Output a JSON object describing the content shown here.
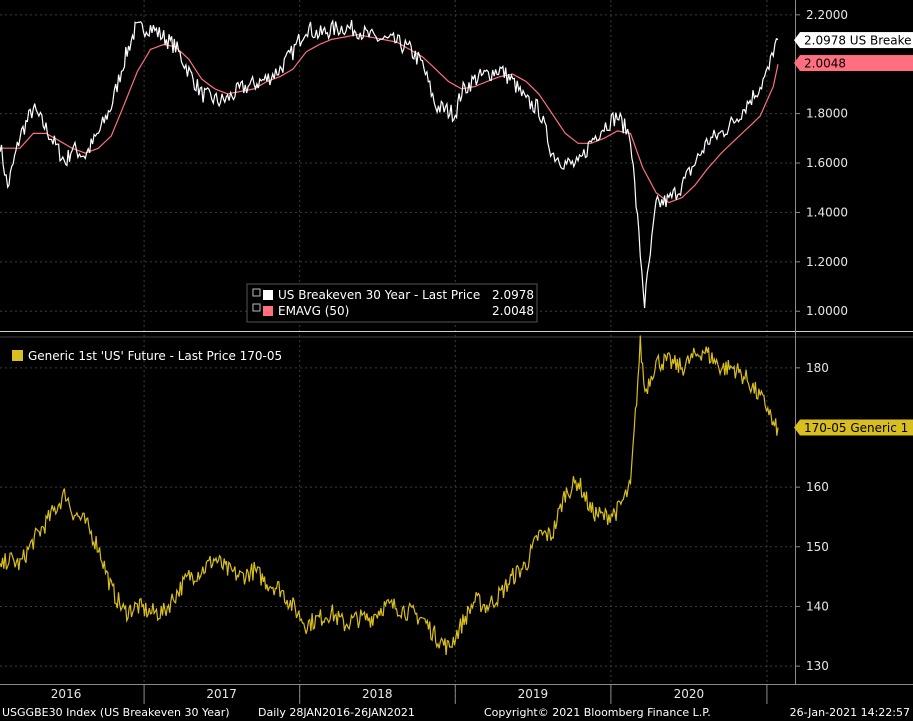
{
  "chart_data": [
    {
      "type": "line",
      "legend": {
        "series1_label": "US Breakeven 30 Year - Last Price",
        "series1_value": "2.0978",
        "series2_label": "EMAVG (50)",
        "series2_value": "2.0048"
      },
      "ylim": [
        0.92,
        2.26
      ],
      "y_ticks": [
        "2.2000",
        "1.8000",
        "1.6000",
        "1.4000",
        "1.2000",
        "1.0000"
      ],
      "last_tags": {
        "series1": "2.0978 US Breake",
        "series2": "2.0048"
      },
      "series": [
        {
          "name": "US Breakeven 30 Year - Last Price",
          "color": "#ffffff",
          "x": [
            "2016-01-28",
            "2016-02-15",
            "2016-03-15",
            "2016-04-15",
            "2016-05-15",
            "2016-06-30",
            "2016-07-15",
            "2016-08-15",
            "2016-09-15",
            "2016-10-15",
            "2016-11-15",
            "2016-12-10",
            "2017-01-15",
            "2017-02-15",
            "2017-03-15",
            "2017-04-15",
            "2017-05-15",
            "2017-06-25",
            "2017-07-15",
            "2017-08-15",
            "2017-09-15",
            "2017-10-15",
            "2017-11-15",
            "2017-12-15",
            "2018-01-15",
            "2018-02-15",
            "2018-03-15",
            "2018-04-15",
            "2018-05-15",
            "2018-06-15",
            "2018-07-15",
            "2018-08-15",
            "2018-09-15",
            "2018-10-15",
            "2018-11-15",
            "2018-12-31",
            "2019-01-15",
            "2019-02-15",
            "2019-03-15",
            "2019-04-15",
            "2019-05-15",
            "2019-06-15",
            "2019-07-15",
            "2019-08-15",
            "2019-09-15",
            "2019-10-15",
            "2019-11-15",
            "2019-12-15",
            "2020-01-15",
            "2020-02-15",
            "2020-03-19",
            "2020-04-15",
            "2020-05-15",
            "2020-06-15",
            "2020-07-15",
            "2020-08-15",
            "2020-09-15",
            "2020-10-15",
            "2020-11-15",
            "2020-12-15",
            "2021-01-05",
            "2021-01-15",
            "2021-01-26"
          ],
          "values": [
            1.68,
            1.5,
            1.71,
            1.82,
            1.74,
            1.6,
            1.66,
            1.63,
            1.72,
            1.83,
            2.02,
            2.14,
            2.15,
            2.11,
            2.07,
            1.97,
            1.88,
            1.85,
            1.86,
            1.9,
            1.92,
            1.94,
            1.98,
            2.05,
            2.15,
            2.12,
            2.14,
            2.15,
            2.14,
            2.11,
            2.1,
            2.09,
            2.06,
            2.0,
            1.83,
            1.8,
            1.89,
            1.94,
            1.96,
            1.98,
            1.93,
            1.85,
            1.82,
            1.64,
            1.6,
            1.59,
            1.69,
            1.75,
            1.79,
            1.71,
            1.03,
            1.43,
            1.45,
            1.51,
            1.6,
            1.69,
            1.72,
            1.77,
            1.84,
            1.91,
            1.98,
            2.06,
            2.1
          ]
        },
        {
          "name": "EMAVG (50)",
          "color": "#ff6f7f",
          "x": [
            "2016-01-28",
            "2016-03-15",
            "2016-04-15",
            "2016-05-15",
            "2016-06-15",
            "2016-07-15",
            "2016-08-15",
            "2016-09-15",
            "2016-10-15",
            "2016-11-15",
            "2016-12-15",
            "2017-01-15",
            "2017-02-15",
            "2017-03-15",
            "2017-04-15",
            "2017-05-15",
            "2017-06-15",
            "2017-07-15",
            "2017-08-15",
            "2017-09-15",
            "2017-10-15",
            "2017-11-15",
            "2017-12-15",
            "2018-01-15",
            "2018-02-15",
            "2018-03-15",
            "2018-04-15",
            "2018-05-15",
            "2018-06-15",
            "2018-07-15",
            "2018-08-15",
            "2018-09-15",
            "2018-10-15",
            "2018-11-15",
            "2018-12-15",
            "2019-01-15",
            "2019-02-15",
            "2019-03-15",
            "2019-04-15",
            "2019-05-15",
            "2019-06-15",
            "2019-07-15",
            "2019-08-15",
            "2019-09-15",
            "2019-10-15",
            "2019-11-15",
            "2019-12-15",
            "2020-01-15",
            "2020-02-15",
            "2020-03-15",
            "2020-04-15",
            "2020-05-15",
            "2020-06-15",
            "2020-07-15",
            "2020-08-15",
            "2020-09-15",
            "2020-10-15",
            "2020-11-15",
            "2020-12-15",
            "2021-01-15",
            "2021-01-26"
          ],
          "values": [
            1.66,
            1.66,
            1.72,
            1.72,
            1.69,
            1.66,
            1.64,
            1.66,
            1.71,
            1.84,
            1.97,
            2.06,
            2.08,
            2.07,
            2.02,
            1.94,
            1.9,
            1.88,
            1.89,
            1.9,
            1.93,
            1.95,
            1.98,
            2.05,
            2.08,
            2.1,
            2.11,
            2.12,
            2.11,
            2.1,
            2.09,
            2.06,
            2.03,
            1.98,
            1.93,
            1.9,
            1.91,
            1.93,
            1.95,
            1.96,
            1.93,
            1.88,
            1.8,
            1.72,
            1.68,
            1.68,
            1.7,
            1.73,
            1.72,
            1.58,
            1.48,
            1.44,
            1.46,
            1.51,
            1.58,
            1.64,
            1.69,
            1.74,
            1.79,
            1.91,
            2.0
          ]
        }
      ]
    },
    {
      "type": "line",
      "legend": {
        "series1_label": "Generic 1st 'US' Future - Last Price 170-05"
      },
      "ylim": [
        127,
        185
      ],
      "y_ticks": [
        "180",
        "160",
        "150",
        "140",
        "130"
      ],
      "last_tags": {
        "series1": "170-05 Generic 1"
      },
      "series": [
        {
          "name": "Generic 1st 'US' Future - Last Price 170-05",
          "color": "#d8be1e",
          "x": [
            "2016-01-28",
            "2016-02-15",
            "2016-03-15",
            "2016-04-15",
            "2016-05-15",
            "2016-06-30",
            "2016-07-15",
            "2016-08-15",
            "2016-09-15",
            "2016-10-15",
            "2016-11-15",
            "2016-12-15",
            "2017-01-15",
            "2017-02-15",
            "2017-03-15",
            "2017-04-15",
            "2017-05-15",
            "2017-06-15",
            "2017-07-15",
            "2017-08-15",
            "2017-09-15",
            "2017-10-15",
            "2017-11-15",
            "2017-12-15",
            "2018-01-15",
            "2018-02-15",
            "2018-03-15",
            "2018-04-15",
            "2018-05-15",
            "2018-06-15",
            "2018-07-15",
            "2018-08-15",
            "2018-09-15",
            "2018-10-15",
            "2018-11-15",
            "2018-12-15",
            "2019-01-15",
            "2019-02-15",
            "2019-03-15",
            "2019-04-15",
            "2019-05-15",
            "2019-06-15",
            "2019-07-15",
            "2019-08-15",
            "2019-09-15",
            "2019-10-15",
            "2019-11-15",
            "2019-12-15",
            "2020-01-15",
            "2020-02-15",
            "2020-03-09",
            "2020-03-20",
            "2020-04-15",
            "2020-05-15",
            "2020-06-15",
            "2020-07-15",
            "2020-08-05",
            "2020-09-15",
            "2020-10-15",
            "2020-11-15",
            "2020-12-15",
            "2021-01-05",
            "2021-01-15",
            "2021-01-26"
          ],
          "values": [
            146,
            148,
            147,
            151,
            154,
            159,
            156,
            154,
            150,
            143,
            139,
            140,
            139,
            139,
            142,
            145,
            146,
            148,
            146,
            145,
            146,
            144,
            143,
            140,
            137,
            138,
            139,
            137,
            138,
            138,
            140,
            140,
            139,
            138,
            135,
            133,
            137,
            141,
            140,
            142,
            145,
            147,
            152,
            152,
            159,
            161,
            156,
            155,
            156,
            160,
            184,
            176,
            181,
            181,
            180,
            182,
            183,
            180,
            180,
            178,
            175,
            173,
            170,
            170
          ]
        }
      ]
    }
  ],
  "x_axis": {
    "years": [
      "2016",
      "2017",
      "2018",
      "2019",
      "2020"
    ]
  },
  "footer": {
    "security": "USGGBE30 Index (US Breakeven 30 Year)",
    "range": "Daily 28JAN2016-26JAN2021",
    "copyright": "Copyright© 2021 Bloomberg Finance L.P.",
    "timestamp": "26-Jan-2021 14:22:57"
  },
  "colors": {
    "background": "#000000",
    "grid": "#3c3c3c",
    "axis_text": "#e6e6e6",
    "breakeven": "#ffffff",
    "ema": "#ff6f7f",
    "future": "#d8be1e",
    "separator": "#cfcfcf"
  }
}
